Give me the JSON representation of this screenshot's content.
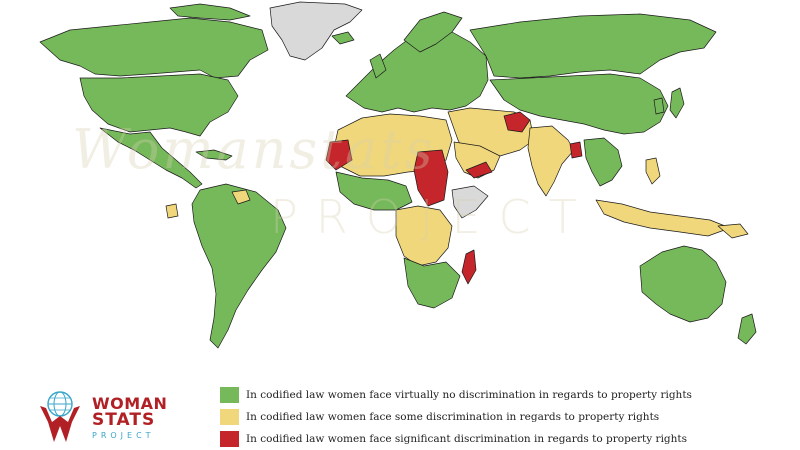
{
  "colors": {
    "none": "#76b95b",
    "some": "#f0d77b",
    "significant": "#c4262b",
    "no_data": "#d9d9d9",
    "ocean": "#ffffff"
  },
  "watermark": {
    "script": "Womanstats",
    "project": "PROJECT"
  },
  "logo": {
    "line1": "WOMAN",
    "line2": "STATS",
    "line3": "PROJECT"
  },
  "legend": [
    {
      "category": "none",
      "label": "In codified law women face virtually no discrimination in regards to property rights"
    },
    {
      "category": "some",
      "label": "In codified law women face some discrimination in regards to property rights"
    },
    {
      "category": "significant",
      "label": "In codified law women face significant discrimination in regards to property rights"
    }
  ]
}
